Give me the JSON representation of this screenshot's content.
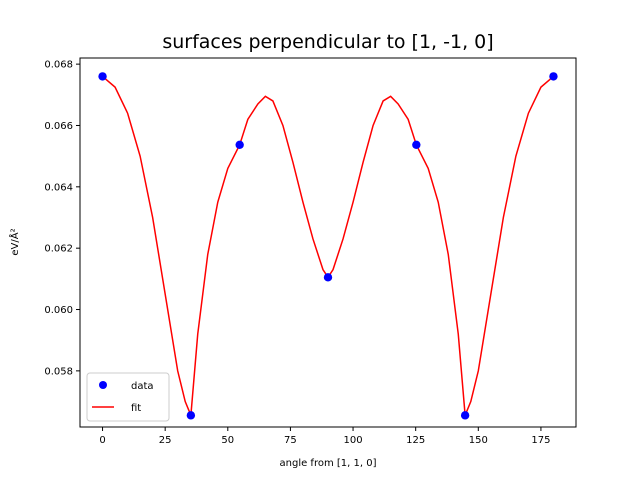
{
  "chart_data": {
    "type": "scatter",
    "title": "surfaces perpendicular to [1, -1, 0]",
    "xlabel": "angle from [1, 1, 0]",
    "ylabel": "eV/Å²",
    "xlim": [
      -9,
      189
    ],
    "ylim": [
      0.05617,
      0.0682
    ],
    "xticks": [
      0,
      25,
      50,
      75,
      100,
      125,
      150,
      175
    ],
    "xtick_labels": [
      "0",
      "25",
      "50",
      "75",
      "100",
      "125",
      "150",
      "175"
    ],
    "yticks": [
      0.058,
      0.06,
      0.062,
      0.064,
      0.066,
      0.068
    ],
    "ytick_labels": [
      "0.058",
      "0.060",
      "0.062",
      "0.064",
      "0.066",
      "0.068"
    ],
    "grid": false,
    "legend_position": "lower-left",
    "series": [
      {
        "name": "data",
        "style": "markers",
        "color": "#0000ff",
        "x": [
          0,
          35.26,
          54.74,
          90,
          125.26,
          144.74,
          180
        ],
        "y": [
          0.0676,
          0.05655,
          0.06537,
          0.06105,
          0.06537,
          0.05655,
          0.0676
        ]
      },
      {
        "name": "fit",
        "style": "line",
        "color": "#ff0000",
        "x": [
          0,
          5,
          10,
          15,
          20,
          25,
          30,
          33,
          35.26,
          38,
          42,
          46,
          50,
          54.74,
          58,
          62,
          65,
          68,
          72,
          76,
          80,
          84,
          88,
          90,
          92,
          96,
          100,
          104,
          108,
          112,
          115,
          118,
          122,
          125.26,
          130,
          134,
          138,
          142,
          144.74,
          147,
          150,
          155,
          160,
          165,
          170,
          175,
          180
        ],
        "y": [
          0.0676,
          0.06725,
          0.0664,
          0.065,
          0.063,
          0.0605,
          0.058,
          0.057,
          0.05655,
          0.0592,
          0.0618,
          0.0635,
          0.0646,
          0.06537,
          0.0662,
          0.0667,
          0.06695,
          0.0668,
          0.066,
          0.0648,
          0.0635,
          0.0623,
          0.0613,
          0.06105,
          0.0613,
          0.0623,
          0.0635,
          0.0648,
          0.066,
          0.0668,
          0.06695,
          0.0667,
          0.0662,
          0.06537,
          0.0646,
          0.0635,
          0.0618,
          0.0592,
          0.05655,
          0.057,
          0.058,
          0.0605,
          0.063,
          0.065,
          0.0664,
          0.06725,
          0.0676
        ]
      }
    ]
  }
}
